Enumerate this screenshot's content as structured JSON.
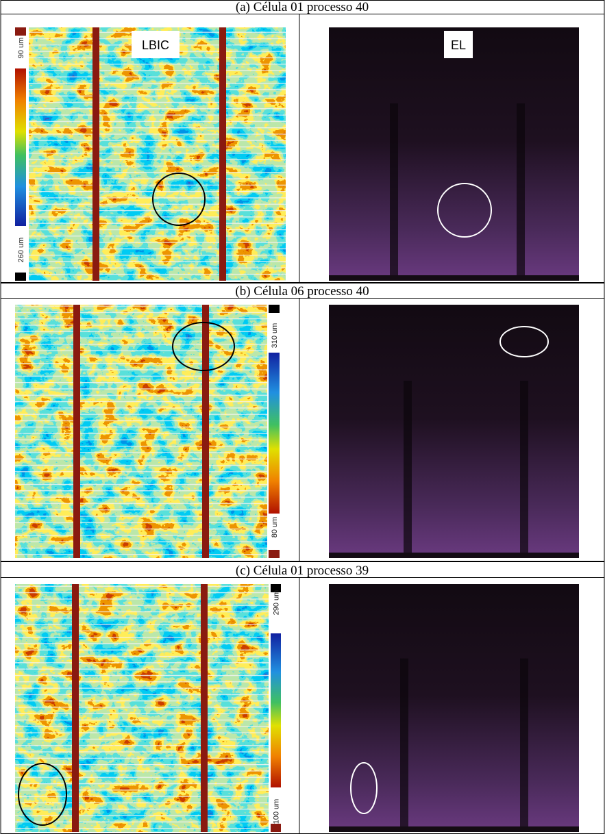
{
  "rows": [
    {
      "caption": "(a) Célula 01 processo 40",
      "lbic_label": "LBIC",
      "el_label": "EL",
      "scale_top": "90 um",
      "scale_bottom": "260 um"
    },
    {
      "caption": "(b) Célula 06 processo 40",
      "scale_top": "310 um",
      "scale_bottom": "80 um"
    },
    {
      "caption": "(c) Célula 01 processo 39",
      "scale_top": "290 um",
      "scale_bottom": "100 um"
    }
  ]
}
